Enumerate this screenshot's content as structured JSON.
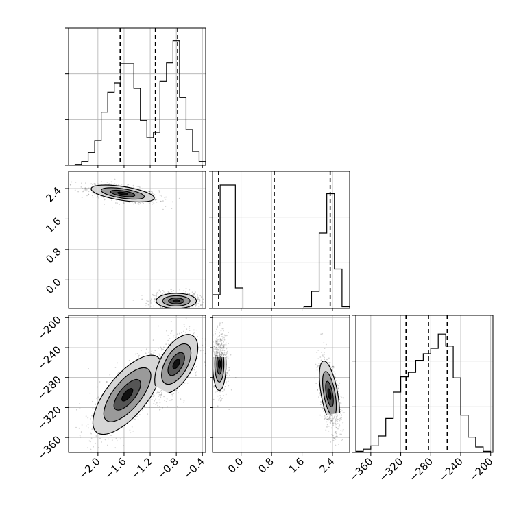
{
  "chart_data": {
    "type": "corner",
    "colors": {
      "line": "#000000",
      "grid": "#b0b0b0",
      "fill_light": "#d6d6d6",
      "fill_mid": "#9a9a9a",
      "fill_dark": "#555555",
      "fill_core": "#111111"
    },
    "parameters": [
      {
        "range": [
          -2.45,
          -0.35
        ],
        "ticks": [
          -2.0,
          -1.6,
          -1.2,
          -0.8,
          -0.4
        ],
        "tick_labels": [
          "−2.0",
          "−1.6",
          "−1.2",
          "−0.8",
          "−0.4"
        ]
      },
      {
        "range": [
          -0.75,
          2.85
        ],
        "ticks": [
          0.0,
          0.8,
          1.6,
          2.4
        ],
        "tick_labels": [
          "0.0",
          "0.8",
          "1.6",
          "2.4"
        ]
      },
      {
        "range": [
          -380,
          -197
        ],
        "ticks": [
          -360,
          -320,
          -280,
          -240,
          -200
        ],
        "tick_labels": [
          "−360",
          "−320",
          "−280",
          "−240",
          "−200"
        ]
      }
    ],
    "histograms": [
      {
        "param": 0,
        "bins": [
          -2.45,
          -2.35,
          -2.25,
          -2.15,
          -2.05,
          -1.95,
          -1.85,
          -1.75,
          -1.65,
          -1.55,
          -1.45,
          -1.35,
          -1.25,
          -1.15,
          -1.05,
          -0.95,
          -0.85,
          -0.75,
          -0.65,
          -0.55,
          -0.45,
          -0.35
        ],
        "counts": [
          0,
          1,
          4,
          14,
          27,
          58,
          80,
          90,
          111,
          111,
          84,
          49,
          30,
          36,
          92,
          112,
          136,
          74,
          39,
          15,
          4
        ],
        "ymax": 150,
        "quantiles": [
          -1.66,
          -1.12,
          -0.78
        ]
      },
      {
        "param": 1,
        "bins": [
          -0.75,
          -0.55,
          -0.35,
          -0.15,
          0.05,
          0.25,
          0.45,
          0.65,
          0.85,
          1.05,
          1.25,
          1.45,
          1.65,
          1.85,
          2.05,
          2.25,
          2.45,
          2.65,
          2.85
        ],
        "counts": [
          8,
          72,
          72,
          12,
          0,
          0,
          0,
          0,
          0,
          0,
          0,
          0,
          1,
          10,
          44,
          67,
          23,
          1
        ],
        "ymax": 80,
        "quantiles": [
          -0.59,
          0.87,
          2.34
        ]
      },
      {
        "param": 2,
        "bins": [
          -380,
          -370,
          -360,
          -350,
          -340,
          -330,
          -320,
          -310,
          -300,
          -290,
          -280,
          -270,
          -260,
          -250,
          -240,
          -230,
          -220,
          -210,
          -200
        ],
        "counts": [
          1,
          3,
          6,
          15,
          31,
          55,
          69,
          73,
          84,
          90,
          95,
          108,
          97,
          68,
          34,
          14,
          5,
          1
        ],
        "ymax": 125,
        "quantiles": [
          -313,
          -283,
          -258
        ]
      }
    ],
    "scatter_panels": [
      {
        "x_param": 0,
        "y_param": 1,
        "clusters": [
          {
            "cx": -1.62,
            "cy": 2.27,
            "sx": 0.22,
            "sy": 0.1,
            "rho": -0.55,
            "n": 750
          },
          {
            "cx": -0.8,
            "cy": -0.55,
            "sx": 0.14,
            "sy": 0.09,
            "rho": 0.0,
            "n": 700
          }
        ]
      },
      {
        "x_param": 0,
        "y_param": 2,
        "clusters": [
          {
            "cx": -1.55,
            "cy": -303,
            "sx": 0.24,
            "sy": 24,
            "rho": 0.7,
            "n": 750
          },
          {
            "cx": -0.8,
            "cy": -262,
            "sx": 0.15,
            "sy": 18,
            "rho": 0.55,
            "n": 700
          }
        ]
      },
      {
        "x_param": 1,
        "y_param": 2,
        "clusters": [
          {
            "cx": -0.57,
            "cy": -262,
            "sx": 0.08,
            "sy": 16,
            "rho": 0.0,
            "n": 650
          },
          {
            "cx": 2.32,
            "cy": -302,
            "sx": 0.12,
            "sy": 20,
            "rho": -0.55,
            "n": 700
          }
        ]
      }
    ]
  }
}
